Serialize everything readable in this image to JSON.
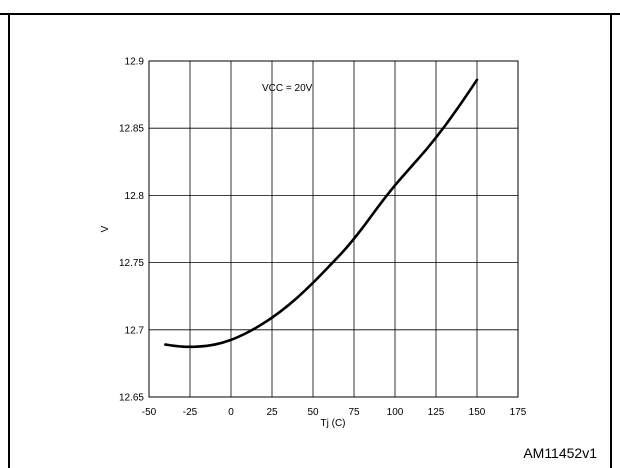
{
  "figure": {
    "header_text": "",
    "id_label": "AM11452v1"
  },
  "chart_data": {
    "type": "line",
    "title": "",
    "xlabel": "Tj (C)",
    "ylabel": "V",
    "xlim": [
      -50,
      175
    ],
    "ylim": [
      12.65,
      12.9
    ],
    "x_ticks": [
      -50,
      -25,
      0,
      25,
      50,
      75,
      100,
      125,
      150,
      175
    ],
    "y_ticks": [
      12.65,
      12.7,
      12.75,
      12.8,
      12.85,
      12.9
    ],
    "x_tick_labels": [
      "-50",
      "-25",
      "0",
      "25",
      "50",
      "75",
      "100",
      "125",
      "150",
      "175"
    ],
    "y_tick_labels": [
      "12.65",
      "12.7",
      "12.75",
      "12.8",
      "12.85",
      "12.9"
    ],
    "grid": true,
    "annotation": "VCC = 20V",
    "series": [
      {
        "color": "#000000",
        "x": [
          -40,
          -30,
          -20,
          -10,
          0,
          10,
          20,
          30,
          40,
          50,
          60,
          70,
          80,
          90,
          100,
          110,
          120,
          130,
          140,
          150
        ],
        "y": [
          12.689,
          12.6875,
          12.6875,
          12.689,
          12.6925,
          12.698,
          12.705,
          12.7135,
          12.7235,
          12.735,
          12.7475,
          12.7605,
          12.7755,
          12.792,
          12.8075,
          12.8215,
          12.8355,
          12.851,
          12.868,
          12.886
        ]
      }
    ]
  }
}
